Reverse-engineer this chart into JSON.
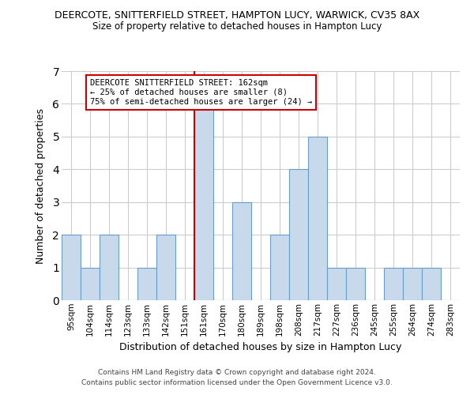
{
  "title": "DEERCOTE, SNITTERFIELD STREET, HAMPTON LUCY, WARWICK, CV35 8AX",
  "subtitle": "Size of property relative to detached houses in Hampton Lucy",
  "xlabel": "Distribution of detached houses by size in Hampton Lucy",
  "ylabel": "Number of detached properties",
  "bar_labels": [
    "95sqm",
    "104sqm",
    "114sqm",
    "123sqm",
    "133sqm",
    "142sqm",
    "151sqm",
    "161sqm",
    "170sqm",
    "180sqm",
    "189sqm",
    "198sqm",
    "208sqm",
    "217sqm",
    "227sqm",
    "236sqm",
    "245sqm",
    "255sqm",
    "264sqm",
    "274sqm",
    "283sqm"
  ],
  "bar_values": [
    2,
    1,
    2,
    0,
    1,
    2,
    0,
    6,
    0,
    3,
    0,
    2,
    4,
    5,
    1,
    1,
    0,
    1,
    1,
    1,
    0
  ],
  "bar_color": "#c9d9ec",
  "bar_edge_color": "#6a9cc9",
  "grid_color": "#cccccc",
  "bg_color": "#ffffff",
  "reference_line_index": 7,
  "reference_line_color": "#cc0000",
  "annotation_text": "DEERCOTE SNITTERFIELD STREET: 162sqm\n← 25% of detached houses are smaller (8)\n75% of semi-detached houses are larger (24) →",
  "annotation_box_color": "#cc0000",
  "ylim": [
    0,
    7
  ],
  "yticks": [
    0,
    1,
    2,
    3,
    4,
    5,
    6,
    7
  ],
  "footer_line1": "Contains HM Land Registry data © Crown copyright and database right 2024.",
  "footer_line2": "Contains public sector information licensed under the Open Government Licence v3.0."
}
